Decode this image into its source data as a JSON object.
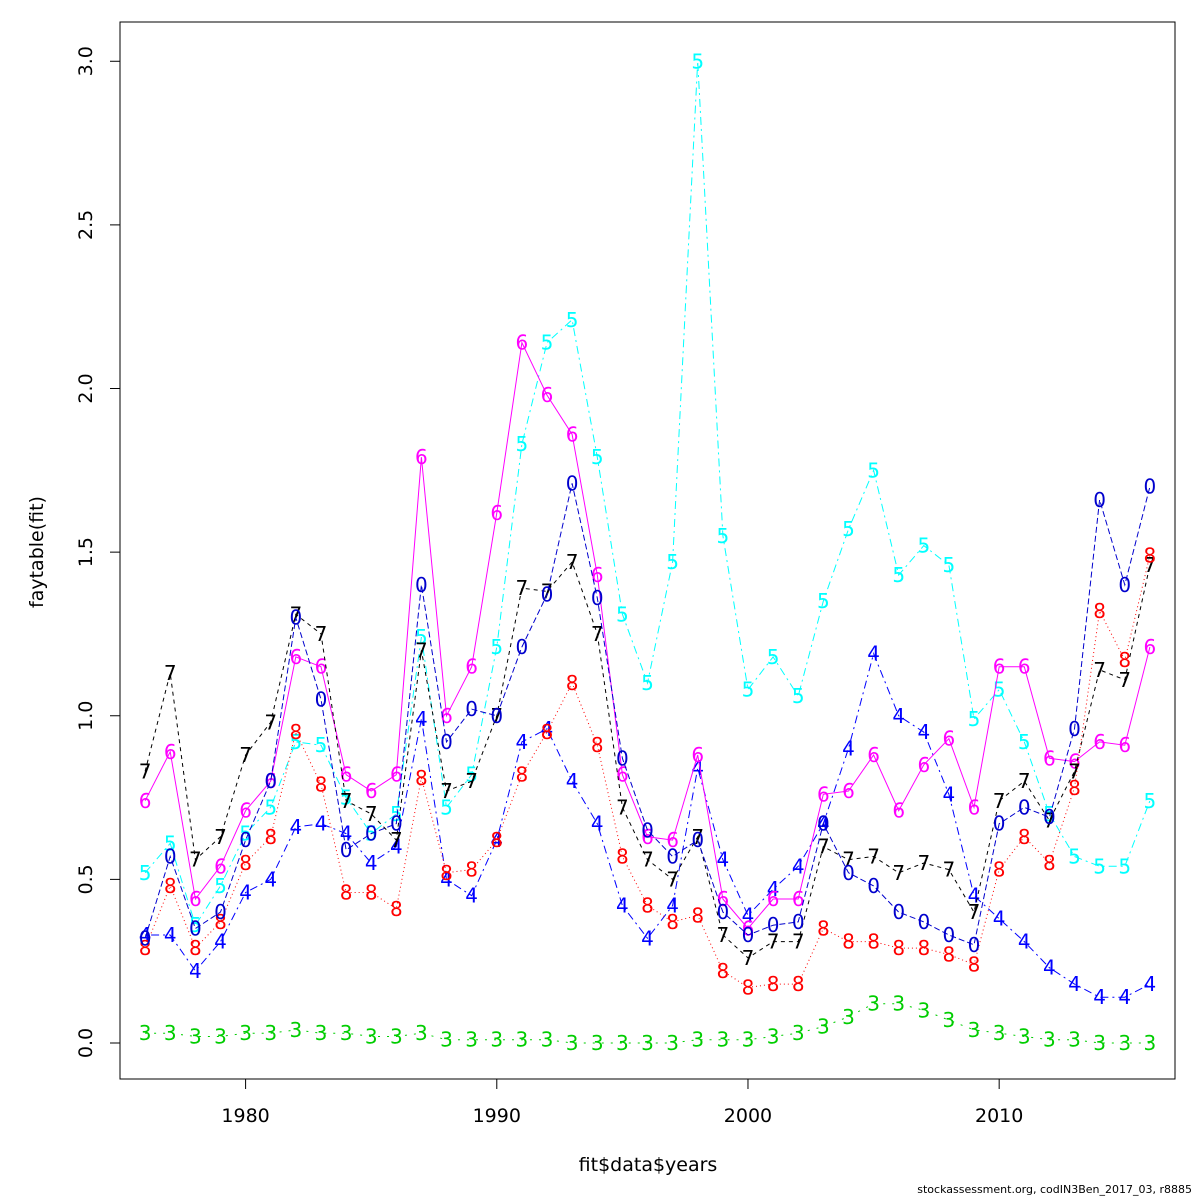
{
  "chart_data": {
    "type": "line",
    "xlabel": "fit$data$years",
    "ylabel": "faytable(fit)",
    "xlim": [
      1975,
      2017
    ],
    "ylim": [
      -0.11,
      3.12
    ],
    "x_ticks": [
      1980,
      1990,
      2000,
      2010
    ],
    "y_ticks": [
      0.0,
      0.5,
      1.0,
      1.5,
      2.0,
      2.5,
      3.0
    ],
    "y_tick_labels": [
      "0.0",
      "0.5",
      "1.0",
      "1.5",
      "2.0",
      "2.5",
      "3.0"
    ],
    "x": [
      1976,
      1977,
      1978,
      1979,
      1980,
      1981,
      1982,
      1983,
      1984,
      1985,
      1986,
      1987,
      1988,
      1989,
      1990,
      1991,
      1992,
      1993,
      1994,
      1995,
      1996,
      1997,
      1998,
      1999,
      2000,
      2001,
      2002,
      2003,
      2004,
      2005,
      2006,
      2007,
      2008,
      2009,
      2010,
      2011,
      2012,
      2013,
      2014,
      2015,
      2016
    ],
    "series": [
      {
        "name": "3",
        "color": "#00cd00",
        "dash": "2,7",
        "values": [
          0.03,
          0.03,
          0.02,
          0.02,
          0.03,
          0.03,
          0.04,
          0.03,
          0.03,
          0.02,
          0.02,
          0.03,
          0.01,
          0.01,
          0.01,
          0.01,
          0.01,
          0.0,
          0.0,
          0.0,
          0.0,
          0.0,
          0.01,
          0.01,
          0.01,
          0.02,
          0.03,
          0.05,
          0.08,
          0.12,
          0.12,
          0.1,
          0.07,
          0.04,
          0.03,
          0.02,
          0.01,
          0.01,
          0.0,
          0.0,
          0.0
        ]
      },
      {
        "name": "4",
        "color": "#0000ff",
        "dash": "2,4,8,4",
        "values": [
          0.33,
          0.33,
          0.22,
          0.31,
          0.46,
          0.5,
          0.66,
          0.67,
          0.64,
          0.55,
          0.6,
          0.99,
          0.5,
          0.45,
          0.62,
          0.92,
          0.96,
          0.8,
          0.67,
          0.42,
          0.32,
          0.42,
          0.84,
          0.56,
          0.39,
          0.47,
          0.54,
          0.67,
          0.9,
          1.19,
          1.0,
          0.95,
          0.76,
          0.45,
          0.38,
          0.31,
          0.23,
          0.18,
          0.14,
          0.14,
          0.18
        ]
      },
      {
        "name": "5",
        "color": "#00ffff",
        "dash": "8,4,2,4",
        "values": [
          0.52,
          0.61,
          0.36,
          0.48,
          0.64,
          0.72,
          0.92,
          0.91,
          0.75,
          0.64,
          0.7,
          1.24,
          0.72,
          0.82,
          1.21,
          1.83,
          2.14,
          2.21,
          1.79,
          1.31,
          1.1,
          1.47,
          3.0,
          1.55,
          1.08,
          1.18,
          1.06,
          1.35,
          1.57,
          1.75,
          1.43,
          1.52,
          1.46,
          0.99,
          1.08,
          0.92,
          0.7,
          0.57,
          0.54,
          0.54,
          0.74
        ]
      },
      {
        "name": "6",
        "color": "#ff00ff",
        "dash": "",
        "values": [
          0.74,
          0.89,
          0.44,
          0.54,
          0.71,
          0.8,
          1.18,
          1.15,
          0.82,
          0.77,
          0.82,
          1.79,
          1.0,
          1.15,
          1.62,
          2.14,
          1.98,
          1.86,
          1.43,
          0.82,
          0.63,
          0.62,
          0.88,
          0.44,
          0.35,
          0.44,
          0.44,
          0.76,
          0.77,
          0.88,
          0.71,
          0.85,
          0.93,
          0.72,
          1.15,
          1.15,
          0.87,
          0.86,
          0.92,
          0.91,
          1.21
        ]
      },
      {
        "name": "7",
        "color": "#000000",
        "dash": "4,4",
        "values": [
          0.83,
          1.13,
          0.56,
          0.63,
          0.88,
          0.98,
          1.31,
          1.25,
          0.74,
          0.7,
          0.62,
          1.2,
          0.77,
          0.8,
          1.0,
          1.39,
          1.38,
          1.47,
          1.25,
          0.72,
          0.56,
          0.5,
          0.63,
          0.33,
          0.26,
          0.31,
          0.31,
          0.6,
          0.56,
          0.57,
          0.52,
          0.55,
          0.53,
          0.4,
          0.74,
          0.8,
          0.68,
          0.83,
          1.14,
          1.11,
          1.46
        ]
      },
      {
        "name": "8",
        "color": "#ff0000",
        "dash": "1,3",
        "values": [
          0.29,
          0.48,
          0.29,
          0.37,
          0.55,
          0.63,
          0.95,
          0.79,
          0.46,
          0.46,
          0.41,
          0.81,
          0.52,
          0.53,
          0.62,
          0.82,
          0.95,
          1.1,
          0.91,
          0.57,
          0.42,
          0.37,
          0.39,
          0.22,
          0.17,
          0.18,
          0.18,
          0.35,
          0.31,
          0.31,
          0.29,
          0.29,
          0.27,
          0.24,
          0.53,
          0.63,
          0.55,
          0.78,
          1.32,
          1.17,
          1.49
        ]
      },
      {
        "name": "0",
        "color": "#0000cd",
        "dash": "6,3",
        "values": [
          0.32,
          0.57,
          0.35,
          0.4,
          0.62,
          0.8,
          1.3,
          1.05,
          0.59,
          0.64,
          0.67,
          1.4,
          0.92,
          1.02,
          1.0,
          1.21,
          1.37,
          1.71,
          1.36,
          0.87,
          0.65,
          0.57,
          0.62,
          0.4,
          0.33,
          0.36,
          0.37,
          0.67,
          0.52,
          0.48,
          0.4,
          0.37,
          0.33,
          0.3,
          0.67,
          0.72,
          0.69,
          0.96,
          1.66,
          1.4,
          1.7
        ]
      }
    ]
  },
  "footer": "stockassessment.org, codIN3Ben_2017_03, r8885"
}
